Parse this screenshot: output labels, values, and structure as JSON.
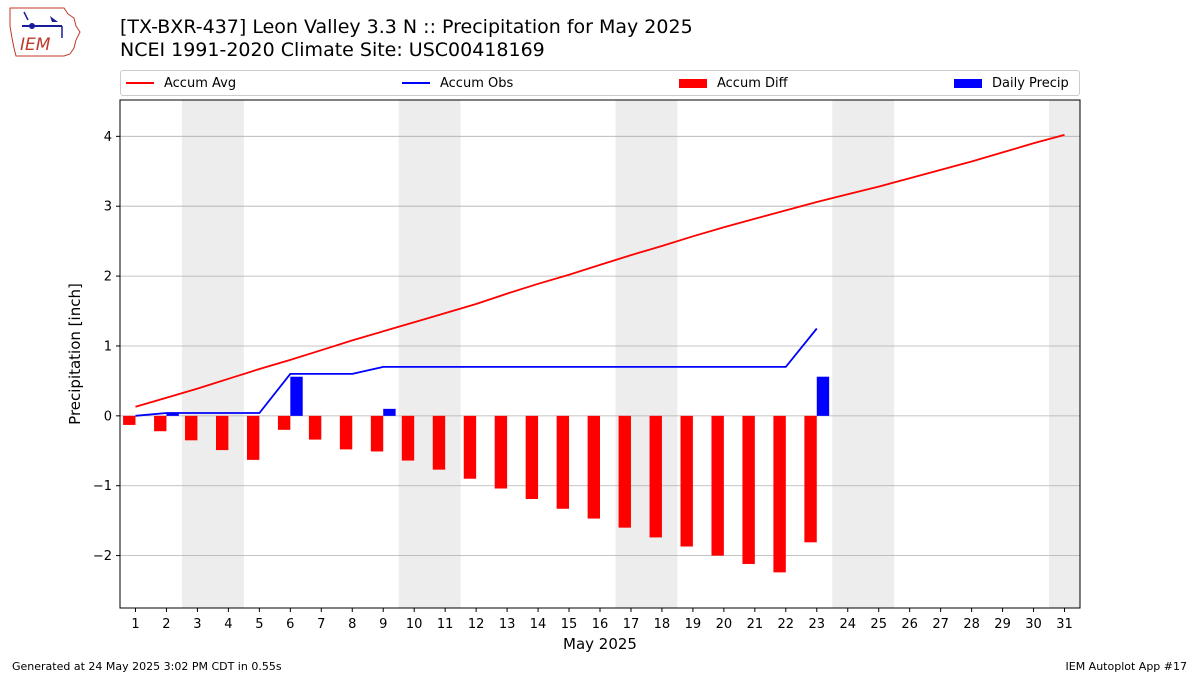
{
  "header": {
    "title_line1": "[TX-BXR-437] Leon Valley 3.3 N :: Precipitation for May 2025",
    "title_line2": "NCEI 1991-2020 Climate Site: USC00418169",
    "logo_text": "IEM"
  },
  "footer": {
    "left": "Generated at 24 May 2025 3:02 PM CDT in 0.55s",
    "right": "IEM Autoplot App #17"
  },
  "colors": {
    "accum_avg": "#ff0000",
    "accum_obs": "#0000ff",
    "accum_diff": "#ff0000",
    "daily_precip": "#0000ff",
    "weekend_shade": "#ededed",
    "grid": "#b0b0b0"
  },
  "chart_data": {
    "type": "bar",
    "xlabel": "May 2025",
    "ylabel": "Precipitation [inch]",
    "xlim": [
      0.5,
      31.5
    ],
    "ylim": [
      -2.75,
      4.52
    ],
    "x_ticks": [
      1,
      2,
      3,
      4,
      5,
      6,
      7,
      8,
      9,
      10,
      11,
      12,
      13,
      14,
      15,
      16,
      17,
      18,
      19,
      20,
      21,
      22,
      23,
      24,
      25,
      26,
      27,
      28,
      29,
      30,
      31
    ],
    "y_ticks": [
      -2,
      -1,
      0,
      1,
      2,
      3,
      4
    ],
    "y_tick_labels": [
      "−2",
      "−1",
      "0",
      "1",
      "2",
      "3",
      "4"
    ],
    "grid": "horizontal",
    "legend_position": "top",
    "weekend_shading": [
      [
        2.5,
        4.5
      ],
      [
        9.5,
        11.5
      ],
      [
        16.5,
        18.5
      ],
      [
        23.5,
        25.5
      ],
      [
        30.5,
        31.5
      ]
    ],
    "legend": [
      "Accum Avg",
      "Accum Obs",
      "Accum Diff",
      "Daily Precip"
    ],
    "series": [
      {
        "name": "Accum Avg",
        "kind": "line",
        "x": [
          1,
          2,
          3,
          4,
          5,
          6,
          7,
          8,
          9,
          10,
          11,
          12,
          13,
          14,
          15,
          16,
          17,
          18,
          19,
          20,
          21,
          22,
          23,
          24,
          25,
          26,
          27,
          28,
          29,
          30,
          31
        ],
        "values": [
          0.13,
          0.26,
          0.39,
          0.53,
          0.67,
          0.8,
          0.94,
          1.08,
          1.21,
          1.34,
          1.47,
          1.6,
          1.75,
          1.89,
          2.02,
          2.16,
          2.3,
          2.43,
          2.57,
          2.7,
          2.82,
          2.94,
          3.06,
          3.17,
          3.28,
          3.4,
          3.52,
          3.64,
          3.77,
          3.9,
          4.02
        ]
      },
      {
        "name": "Accum Obs",
        "kind": "line",
        "x": [
          1,
          2,
          3,
          4,
          5,
          6,
          7,
          8,
          9,
          10,
          11,
          12,
          13,
          14,
          15,
          16,
          17,
          18,
          19,
          20,
          21,
          22,
          23
        ],
        "values": [
          0.0,
          0.04,
          0.04,
          0.04,
          0.04,
          0.6,
          0.6,
          0.6,
          0.7,
          0.7,
          0.7,
          0.7,
          0.7,
          0.7,
          0.7,
          0.7,
          0.7,
          0.7,
          0.7,
          0.7,
          0.7,
          0.7,
          1.25
        ]
      },
      {
        "name": "Accum Diff",
        "kind": "bar",
        "offset": -0.2,
        "x": [
          1,
          2,
          3,
          4,
          5,
          6,
          7,
          8,
          9,
          10,
          11,
          12,
          13,
          14,
          15,
          16,
          17,
          18,
          19,
          20,
          21,
          22,
          23
        ],
        "values": [
          -0.13,
          -0.22,
          -0.35,
          -0.49,
          -0.63,
          -0.2,
          -0.34,
          -0.48,
          -0.51,
          -0.64,
          -0.77,
          -0.9,
          -1.04,
          -1.19,
          -1.33,
          -1.47,
          -1.6,
          -1.74,
          -1.87,
          -2.0,
          -2.12,
          -2.24,
          -1.81
        ]
      },
      {
        "name": "Daily Precip",
        "kind": "bar",
        "offset": 0.2,
        "x": [
          2,
          6,
          9,
          23
        ],
        "values": [
          0.04,
          0.56,
          0.1,
          0.56
        ]
      }
    ]
  }
}
